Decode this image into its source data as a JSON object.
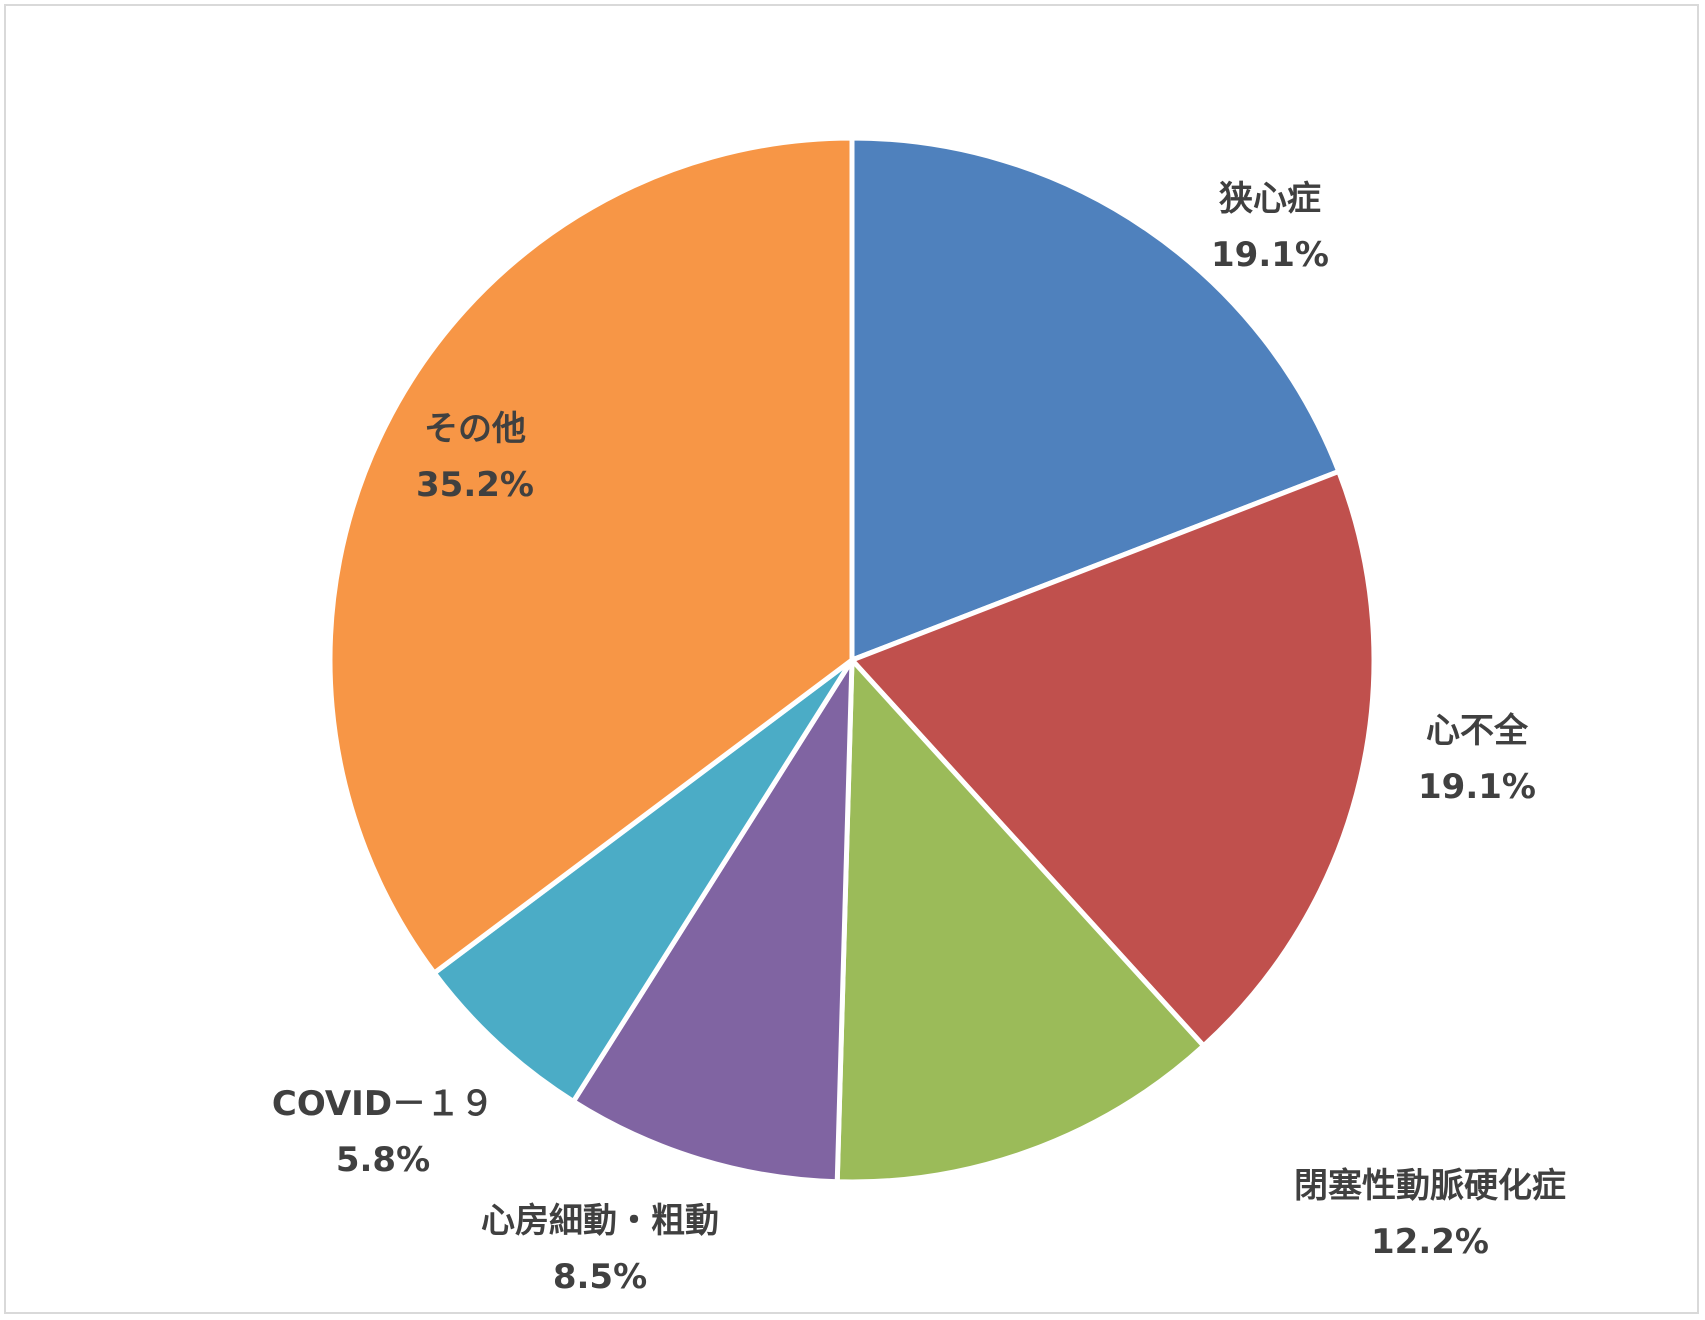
{
  "chart_data": {
    "type": "pie",
    "title": "",
    "start_angle_deg": 0,
    "direction": "clockwise",
    "slices": [
      {
        "label": "狭心症",
        "value": 19.1,
        "display": "19.1%",
        "color": "#4F81BD"
      },
      {
        "label": "心不全",
        "value": 19.1,
        "display": "19.1%",
        "color": "#C0504D"
      },
      {
        "label": "閉塞性動脈硬化症",
        "value": 12.2,
        "display": "12.2%",
        "color": "#9BBB59"
      },
      {
        "label": "心房細動・粗動",
        "value": 8.5,
        "display": "8.5%",
        "color": "#8064A2"
      },
      {
        "label": "COVID－１９",
        "value": 5.8,
        "display": "5.8%",
        "color": "#4BACC6"
      },
      {
        "label": "その他",
        "value": 35.2,
        "display": "35.2%",
        "color": "#F79646"
      }
    ],
    "legend": "none",
    "data_labels": "category-and-percent"
  }
}
